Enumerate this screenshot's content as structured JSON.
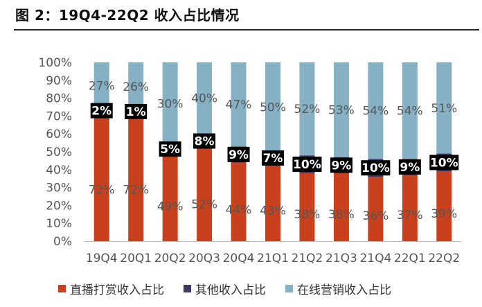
{
  "figure_title": "图 2：19Q4-22Q2 收入占比情况",
  "chart_data": {
    "type": "bar",
    "stacked": true,
    "percent_axis": true,
    "categories": [
      "19Q4",
      "20Q1",
      "20Q2",
      "20Q3",
      "20Q4",
      "21Q1",
      "21Q2",
      "21Q3",
      "21Q4",
      "22Q1",
      "22Q2"
    ],
    "series": [
      {
        "name": "直播打赏收入占比",
        "color": "#c8401c",
        "values": [
          72,
          72,
          49,
          52,
          44,
          43,
          38,
          38,
          36,
          37,
          39
        ],
        "labels": [
          "72%",
          "72%",
          "49%",
          "52%",
          "44%",
          "43%",
          "38%",
          "38%",
          "36%",
          "37%",
          "39%"
        ]
      },
      {
        "name": "其他收入占比",
        "color": "#3f3a6b",
        "values": [
          2,
          1,
          5,
          8,
          9,
          7,
          10,
          9,
          10,
          9,
          10
        ],
        "labels": [
          "2%",
          "1%",
          "5%",
          "8%",
          "9%",
          "7%",
          "10%",
          "9%",
          "10%",
          "9%",
          "10%"
        ]
      },
      {
        "name": "在线营销收入占比",
        "color": "#86b0c4",
        "values": [
          27,
          26,
          30,
          40,
          47,
          50,
          52,
          53,
          54,
          54,
          51
        ],
        "labels": [
          "27%",
          "26%",
          "30%",
          "40%",
          "47%",
          "50%",
          "52%",
          "53%",
          "54%",
          "54%",
          "51%"
        ]
      }
    ],
    "ylim": [
      0,
      100
    ],
    "yticks": [
      "0%",
      "10%",
      "20%",
      "30%",
      "40%",
      "50%",
      "60%",
      "70%",
      "80%",
      "90%",
      "100%"
    ],
    "x_tick_text": [
      "19Q4",
      "20Q1",
      "20Q2",
      "20Q3",
      "20Q4",
      "21Q1",
      "21Q2",
      "21Q3",
      "21Q4",
      "22Q1",
      "22Q2"
    ],
    "legend_position": "bottom",
    "grid": false
  }
}
